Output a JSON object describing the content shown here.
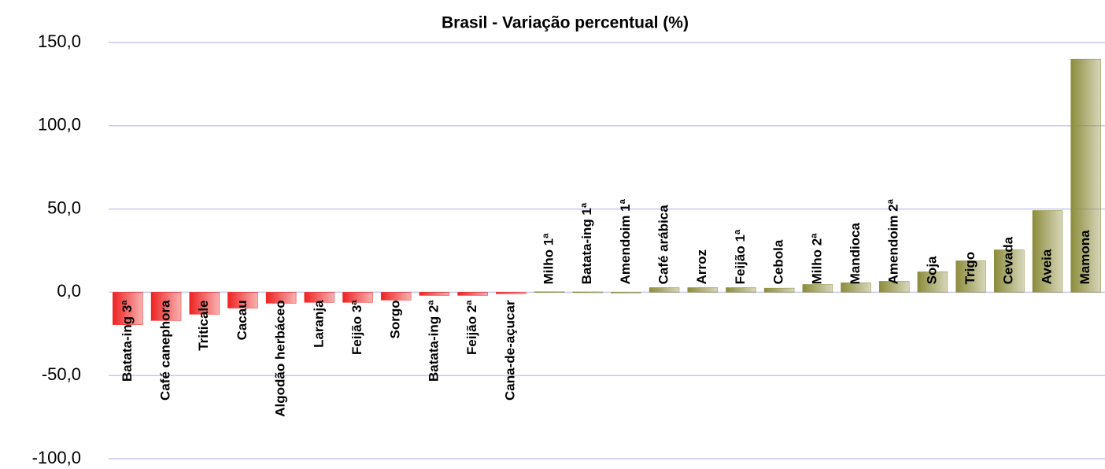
{
  "chart_data": {
    "type": "bar",
    "title": "Brasil - Variação percentual (%)",
    "categories": [
      "Batata-ing 3ª",
      "Café canephora",
      "Triticale",
      "Cacau",
      "Algodão herbáceo",
      "Laranja",
      "Feijão 3ª",
      "Sorgo",
      "Batata-ing 2ª",
      "Feijão 2ª",
      "Cana-de-açucar",
      "Milho 1ª",
      "Batata-ing 1ª",
      "Amendoim 1ª",
      "Café arábica",
      "Arroz",
      "Feijão 1ª",
      "Cebola",
      "Milho 2ª",
      "Mandioca",
      "Amendoim 2ª",
      "Soja",
      "Trigo",
      "Cevada",
      "Aveia",
      "Mamona"
    ],
    "values": [
      -19.5,
      -17,
      -13.2,
      -9.5,
      -6.6,
      -6.1,
      -6.1,
      -4.7,
      -1.9,
      -1.9,
      -0.9,
      0.3,
      0.2,
      0,
      2.8,
      2.8,
      2.8,
      2.5,
      4.7,
      5.7,
      6.6,
      12.3,
      18.9,
      25.5,
      49.1,
      140
    ],
    "negative_color": "#ee2222",
    "positive_color": "#8c8c3c",
    "ylim": [
      -100,
      150
    ],
    "yticks": [
      {
        "value": -100,
        "label": "-100,0"
      },
      {
        "value": -50,
        "label": "-50,0"
      },
      {
        "value": 0,
        "label": "0,0"
      },
      {
        "value": 50,
        "label": "50,0"
      },
      {
        "value": 100,
        "label": "100,0"
      },
      {
        "value": 150,
        "label": "150,0"
      }
    ],
    "grid": true
  }
}
